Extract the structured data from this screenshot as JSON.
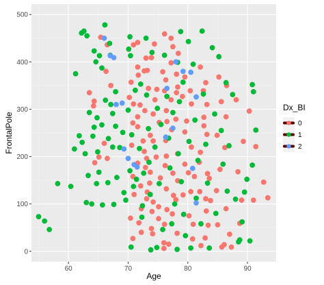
{
  "colors": {
    "panel_bg": "#EBEBEB",
    "grid_major": "#FFFFFF",
    "series_0": "#F8766D",
    "series_1": "#00BA38",
    "series_2": "#619CFF",
    "legend_key_line": "#5a0000"
  },
  "chart_data": {
    "type": "scatter",
    "xlabel": "Age",
    "ylabel": "FrontalPole",
    "xlim": [
      53.8,
      94.8
    ],
    "ylim": [
      -22,
      522
    ],
    "x_ticks": [
      60,
      70,
      80,
      90
    ],
    "y_ticks": [
      0,
      100,
      200,
      300,
      400,
      500
    ],
    "grid": true,
    "legend": {
      "title": "Dx_BI",
      "placement": "right",
      "entries": [
        "0",
        "1",
        "2"
      ]
    },
    "series": [
      {
        "name": "0",
        "points": [
          [
            63.5,
            335
          ],
          [
            64.3,
            317
          ],
          [
            64.2,
            307
          ],
          [
            65.4,
            452
          ],
          [
            66.5,
            436
          ],
          [
            66.3,
            380
          ],
          [
            67.1,
            350
          ],
          [
            66.0,
            228
          ],
          [
            66.5,
            196
          ],
          [
            64.4,
            187
          ],
          [
            65.1,
            199
          ],
          [
            70.9,
            436
          ],
          [
            71.6,
            441
          ],
          [
            73.0,
            408
          ],
          [
            71.6,
            389
          ],
          [
            72.7,
            381
          ],
          [
            71.7,
            372
          ],
          [
            70.5,
            357
          ],
          [
            70.2,
            325
          ],
          [
            70.9,
            311
          ],
          [
            72.0,
            309
          ],
          [
            72.8,
            297
          ],
          [
            71.6,
            284
          ],
          [
            70.8,
            271
          ],
          [
            71.6,
            263
          ],
          [
            72.5,
            233
          ],
          [
            70.6,
            224
          ],
          [
            72.7,
            211
          ],
          [
            73.1,
            196
          ],
          [
            71.6,
            186
          ],
          [
            72.9,
            177
          ],
          [
            70.8,
            158
          ],
          [
            72.1,
            138
          ],
          [
            71.0,
            120
          ],
          [
            73.1,
            111
          ],
          [
            72.2,
            90
          ],
          [
            70.4,
            70
          ],
          [
            71.8,
            60
          ],
          [
            72.2,
            40
          ],
          [
            70.8,
            27
          ],
          [
            74.4,
            438
          ],
          [
            73.9,
            409
          ],
          [
            73.2,
            382
          ],
          [
            75.8,
            379
          ],
          [
            73.4,
            344
          ],
          [
            74.8,
            342
          ],
          [
            74.5,
            320
          ],
          [
            74.2,
            290
          ],
          [
            75.2,
            272
          ],
          [
            73.7,
            245
          ],
          [
            74.2,
            233
          ],
          [
            74.7,
            199
          ],
          [
            73.7,
            167
          ],
          [
            75.4,
            155
          ],
          [
            73.6,
            144
          ],
          [
            73.2,
            125
          ],
          [
            74.2,
            104
          ],
          [
            75.1,
            94
          ],
          [
            74.0,
            84
          ],
          [
            75.1,
            69
          ],
          [
            73.9,
            48
          ],
          [
            74.1,
            37
          ],
          [
            76.0,
            18
          ],
          [
            76.1,
            459
          ],
          [
            77.2,
            450
          ],
          [
            77.5,
            432
          ],
          [
            78.4,
            418
          ],
          [
            77.2,
            398
          ],
          [
            78.1,
            374
          ],
          [
            76.3,
            362
          ],
          [
            78.3,
            347
          ],
          [
            76.1,
            339
          ],
          [
            78.1,
            335
          ],
          [
            77.2,
            320
          ],
          [
            76.4,
            297
          ],
          [
            78.0,
            279
          ],
          [
            76.5,
            274
          ],
          [
            77.3,
            257
          ],
          [
            76.3,
            234
          ],
          [
            78.3,
            206
          ],
          [
            76.4,
            201
          ],
          [
            76.2,
            181
          ],
          [
            77.5,
            165
          ],
          [
            78.3,
            149
          ],
          [
            76.4,
            132
          ],
          [
            77.6,
            118
          ],
          [
            78.0,
            109
          ],
          [
            76.5,
            88
          ],
          [
            77.4,
            79
          ],
          [
            76.1,
            57
          ],
          [
            78.2,
            38
          ],
          [
            76.8,
            15
          ],
          [
            76.0,
            6
          ],
          [
            79.5,
            368
          ],
          [
            80.4,
            339
          ],
          [
            79.1,
            327
          ],
          [
            80.6,
            311
          ],
          [
            79.8,
            275
          ],
          [
            79.5,
            252
          ],
          [
            80.6,
            220
          ],
          [
            79.5,
            184
          ],
          [
            80.1,
            166
          ],
          [
            81.1,
            158
          ],
          [
            80.5,
            126
          ],
          [
            79.2,
            119
          ],
          [
            80.2,
            75
          ],
          [
            80.9,
            57
          ],
          [
            80.8,
            26
          ],
          [
            82.1,
            389
          ],
          [
            83.0,
            356
          ],
          [
            82.6,
            339
          ],
          [
            83.2,
            310
          ],
          [
            82.7,
            283
          ],
          [
            82.7,
            265
          ],
          [
            83.2,
            247
          ],
          [
            82.1,
            209
          ],
          [
            81.9,
            188
          ],
          [
            83.3,
            164
          ],
          [
            83.6,
            154
          ],
          [
            82.0,
            126
          ],
          [
            83.0,
            111
          ],
          [
            83.8,
            107
          ],
          [
            83.1,
            85
          ],
          [
            83.4,
            55
          ],
          [
            82.9,
            28
          ],
          [
            82.2,
            12
          ],
          [
            85.2,
            368
          ],
          [
            86.5,
            350
          ],
          [
            85.6,
            316
          ],
          [
            86.4,
            284
          ],
          [
            84.9,
            245
          ],
          [
            86.2,
            219
          ],
          [
            85.4,
            173
          ],
          [
            84.8,
            128
          ],
          [
            86.4,
            90
          ],
          [
            85.0,
            56
          ],
          [
            87.0,
            36
          ],
          [
            86.1,
            14
          ],
          [
            88.1,
            320
          ],
          [
            89.3,
            232
          ],
          [
            88.4,
            168
          ],
          [
            89.0,
            108
          ],
          [
            88.7,
            59
          ],
          [
            90.3,
            296
          ],
          [
            91.4,
            221
          ],
          [
            92.7,
            146
          ],
          [
            93.4,
            113
          ],
          [
            91.0,
            108
          ],
          [
            85.7,
            9
          ],
          [
            87.3,
            9
          ]
        ]
      },
      {
        "name": "1",
        "points": [
          [
            55.0,
            73
          ],
          [
            56.0,
            64
          ],
          [
            56.8,
            46
          ],
          [
            58.2,
            143
          ],
          [
            60.4,
            137
          ],
          [
            61.0,
            216
          ],
          [
            61.2,
            375
          ],
          [
            61.8,
            244
          ],
          [
            62.3,
            230
          ],
          [
            62.2,
            461
          ],
          [
            62.6,
            465
          ],
          [
            62.8,
            206
          ],
          [
            63.0,
            103
          ],
          [
            63.1,
            455
          ],
          [
            63.3,
            160
          ],
          [
            63.5,
            293
          ],
          [
            63.9,
            100
          ],
          [
            64.3,
            423
          ],
          [
            64.6,
            400
          ],
          [
            64.3,
            262
          ],
          [
            64.1,
            243
          ],
          [
            64.8,
            282
          ],
          [
            64.7,
            143
          ],
          [
            65.2,
            413
          ],
          [
            64.9,
            210
          ],
          [
            65.1,
            167
          ],
          [
            65.6,
            387
          ],
          [
            65.6,
            267
          ],
          [
            65.7,
            98
          ],
          [
            66.1,
            478
          ],
          [
            66.2,
            319
          ],
          [
            66.7,
            238
          ],
          [
            66.6,
            145
          ],
          [
            66.9,
            439
          ],
          [
            67.0,
            414
          ],
          [
            67.1,
            310
          ],
          [
            67.4,
            291
          ],
          [
            67.4,
            220
          ],
          [
            67.6,
            99
          ],
          [
            67.9,
            337
          ],
          [
            67.9,
            264
          ],
          [
            68.1,
            156
          ],
          [
            68.6,
            219
          ],
          [
            69.1,
            251
          ],
          [
            69.3,
            124
          ],
          [
            69.6,
            108
          ],
          [
            70.3,
            453
          ],
          [
            70.1,
            427
          ],
          [
            70.4,
            413
          ],
          [
            70.0,
            298
          ],
          [
            70.6,
            246
          ],
          [
            70.3,
            170
          ],
          [
            70.9,
            137
          ],
          [
            70.5,
            9
          ],
          [
            71.2,
            340
          ],
          [
            71.4,
            152
          ],
          [
            71.9,
            217
          ],
          [
            72.1,
            353
          ],
          [
            72.3,
            72
          ],
          [
            72.6,
            165
          ],
          [
            72.4,
            96
          ],
          [
            73.0,
            450
          ],
          [
            73.1,
            330
          ],
          [
            73.4,
            259
          ],
          [
            73.5,
            188
          ],
          [
            73.7,
            120
          ],
          [
            73.8,
            3
          ],
          [
            74.0,
            420
          ],
          [
            74.5,
            220
          ],
          [
            74.9,
            302
          ],
          [
            74.8,
            8
          ],
          [
            75.5,
            268
          ],
          [
            75.2,
            143
          ],
          [
            75.8,
            46
          ],
          [
            76.1,
            414
          ],
          [
            76.5,
            327
          ],
          [
            76.8,
            239
          ],
          [
            77.0,
            176
          ],
          [
            77.3,
            58
          ],
          [
            77.5,
            293
          ],
          [
            77.8,
            100
          ],
          [
            78.2,
            4
          ],
          [
            78.8,
            464
          ],
          [
            78.3,
            399
          ],
          [
            78.4,
            206
          ],
          [
            78.6,
            316
          ],
          [
            78.9,
            147
          ],
          [
            79.3,
            78
          ],
          [
            79.6,
            33
          ],
          [
            79.2,
            357
          ],
          [
            80.1,
            443
          ],
          [
            80.2,
            232
          ],
          [
            80.5,
            7
          ],
          [
            80.9,
            395
          ],
          [
            81.2,
            277
          ],
          [
            81.4,
            112
          ],
          [
            81.7,
            192
          ],
          [
            82.2,
            58
          ],
          [
            82.4,
            465
          ],
          [
            82.6,
            332
          ],
          [
            83.0,
            226
          ],
          [
            83.3,
            144
          ],
          [
            83.6,
            7
          ],
          [
            84.1,
            430
          ],
          [
            84.5,
            290
          ],
          [
            84.7,
            80
          ],
          [
            85.2,
            411
          ],
          [
            85.6,
            255
          ],
          [
            85.9,
            184
          ],
          [
            86.4,
            356
          ],
          [
            86.6,
            127
          ],
          [
            86.9,
            223
          ],
          [
            87.5,
            331
          ],
          [
            88.0,
            110
          ],
          [
            88.5,
            20
          ],
          [
            88.7,
            24
          ],
          [
            89.1,
            62
          ],
          [
            89.5,
            125
          ],
          [
            89.9,
            152
          ],
          [
            90.4,
            22
          ],
          [
            90.8,
            182
          ],
          [
            91.4,
            256
          ],
          [
            91.0,
            337
          ],
          [
            90.8,
            352
          ]
        ]
      },
      {
        "name": "2",
        "points": [
          [
            66.0,
            450
          ],
          [
            67.0,
            413
          ],
          [
            67.6,
            409
          ],
          [
            68.0,
            310
          ],
          [
            69.0,
            313
          ],
          [
            69.3,
            216
          ],
          [
            70.0,
            196
          ],
          [
            71.0,
            183
          ],
          [
            71.5,
            178
          ],
          [
            76.5,
            344
          ],
          [
            76.3,
            241
          ],
          [
            77.5,
            260
          ],
          [
            78.0,
            400
          ],
          [
            79.2,
            380
          ],
          [
            80.5,
            378
          ],
          [
            81.4,
            326
          ],
          [
            80.8,
            175
          ],
          [
            81.4,
            102
          ]
        ]
      }
    ]
  }
}
